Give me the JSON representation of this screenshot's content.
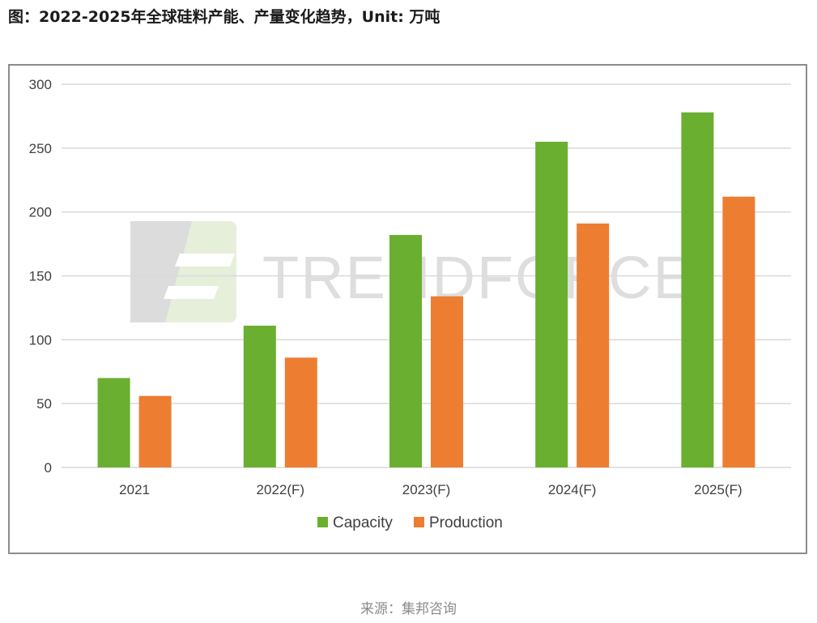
{
  "title": "图：2022-2025年全球硅料产能、产量变化趋势，Unit: 万吨",
  "source": "来源：集邦咨询",
  "watermark": {
    "text": "TRENDFORCE"
  },
  "colors": {
    "capacity": "#6aaf2f",
    "production": "#ed7d31",
    "grid": "#d9d9d9",
    "frame": "#8c8c8c"
  },
  "chart_data": {
    "type": "bar",
    "categories": [
      "2021",
      "2022(F)",
      "2023(F)",
      "2024(F)",
      "2025(F)"
    ],
    "series": [
      {
        "name": "Capacity",
        "values": [
          70,
          111,
          182,
          255,
          278
        ]
      },
      {
        "name": "Production",
        "values": [
          56,
          86,
          134,
          191,
          212
        ]
      }
    ],
    "ylim": [
      0,
      300
    ],
    "yticks": [
      0,
      50,
      100,
      150,
      200,
      250,
      300
    ],
    "grid": true,
    "legend_position": "bottom"
  }
}
